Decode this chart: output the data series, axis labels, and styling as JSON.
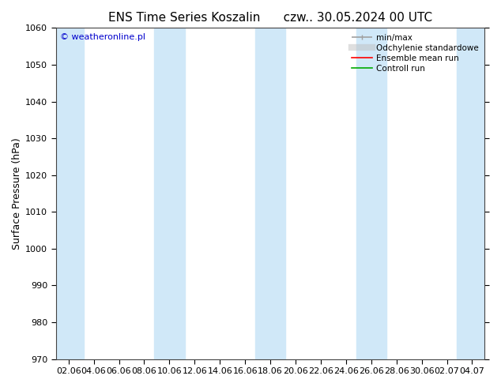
{
  "title_left": "ENS Time Series Koszalin",
  "title_right": "czw.. 30.05.2024 00 UTC",
  "ylabel": "Surface Pressure (hPa)",
  "ylim": [
    970,
    1060
  ],
  "yticks": [
    970,
    980,
    990,
    1000,
    1010,
    1020,
    1030,
    1040,
    1050,
    1060
  ],
  "xtick_labels": [
    "02.06",
    "04.06",
    "06.06",
    "08.06",
    "10.06",
    "12.06",
    "14.06",
    "16.06",
    "18.06",
    "20.06",
    "22.06",
    "24.06",
    "26.06",
    "28.06",
    "30.06",
    "02.07",
    "04.07"
  ],
  "band_color": "#d0e8f8",
  "watermark": "© weatheronline.pl",
  "watermark_color": "#0000cc",
  "legend_entries": [
    "min/max",
    "Odchylenie standardowe",
    "Ensemble mean run",
    "Controll run"
  ],
  "legend_line_colors": [
    "#a0a0a0",
    "#c0c0c0",
    "#ff0000",
    "#00aa00"
  ],
  "bg_color": "#ffffff",
  "plot_bg_color": "#ffffff",
  "figsize": [
    6.34,
    4.9
  ],
  "dpi": 100,
  "band_positions": [
    0,
    1,
    4,
    5,
    8,
    9,
    12,
    13,
    16
  ],
  "title_fontsize": 11,
  "ylabel_fontsize": 9,
  "tick_fontsize": 8
}
